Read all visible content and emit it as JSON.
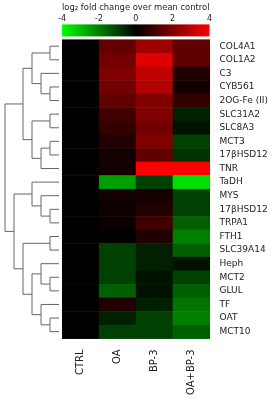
{
  "chart_data": {
    "type": "heatmap",
    "title": "log₂ fold change over mean control",
    "categories": [
      "CTRL",
      "OA",
      "BP-3",
      "OA+BP-3"
    ],
    "rows": [
      "COL4A1",
      "COL1A2",
      "C3",
      "CYB561",
      "2OG-Fe (II)",
      "SLC31A2",
      "SLC8A3",
      "MCT3",
      "17βHSD12",
      "TNR",
      "TaDH",
      "MYS",
      "17βHSD12",
      "TRPA1",
      "FTH1",
      "SLC39A14",
      "Heph",
      "MCT2",
      "GLUL",
      "TF",
      "OAT",
      "MCT10"
    ],
    "values": [
      [
        0,
        1.5,
        2.5,
        1.5
      ],
      [
        0,
        1.8,
        3.5,
        1.5
      ],
      [
        0,
        2,
        3,
        0.5
      ],
      [
        0,
        1.8,
        2.8,
        0.3
      ],
      [
        0,
        1.5,
        2,
        0.8
      ],
      [
        0,
        1,
        2,
        -0.5
      ],
      [
        0,
        0.8,
        1.8,
        -0.3
      ],
      [
        0,
        0.5,
        2,
        -1
      ],
      [
        0,
        0.3,
        1.5,
        -0.8
      ],
      [
        0,
        0.3,
        4,
        4
      ],
      [
        0,
        -2.5,
        -1,
        -3.5
      ],
      [
        0,
        0.3,
        0.3,
        -1
      ],
      [
        0,
        0.2,
        0.5,
        -1
      ],
      [
        0,
        0.2,
        1,
        -1.5
      ],
      [
        0,
        0,
        0.5,
        -2
      ],
      [
        0,
        -1,
        -0.5,
        -1.5
      ],
      [
        0,
        -1,
        -0.5,
        -0.3
      ],
      [
        0,
        -1,
        -0.3,
        -1
      ],
      [
        0,
        -1.5,
        -0.3,
        -1.5
      ],
      [
        0,
        0.5,
        -0.5,
        -1.8
      ],
      [
        0,
        -0.5,
        -1,
        -2
      ],
      [
        0,
        -1,
        -1,
        -1.5
      ]
    ],
    "color_range": [
      -4,
      4
    ],
    "color_ticks": [
      -4,
      -2,
      0,
      2,
      4
    ]
  }
}
